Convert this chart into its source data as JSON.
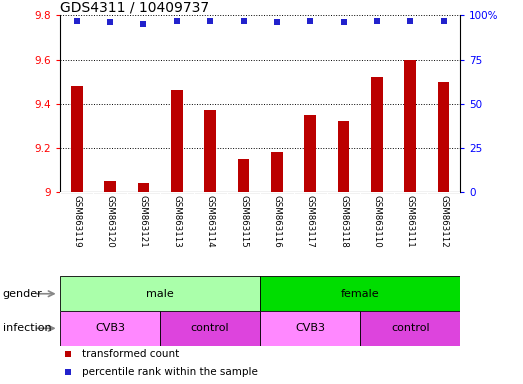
{
  "title": "GDS4311 / 10409737",
  "samples": [
    "GSM863119",
    "GSM863120",
    "GSM863121",
    "GSM863113",
    "GSM863114",
    "GSM863115",
    "GSM863116",
    "GSM863117",
    "GSM863118",
    "GSM863110",
    "GSM863111",
    "GSM863112"
  ],
  "transformed_count": [
    9.48,
    9.05,
    9.04,
    9.46,
    9.37,
    9.15,
    9.18,
    9.35,
    9.32,
    9.52,
    9.6,
    9.5
  ],
  "percentile_rank": [
    97,
    96,
    95,
    97,
    97,
    97,
    96,
    97,
    96,
    97,
    97,
    97
  ],
  "ylim_left": [
    9.0,
    9.8
  ],
  "ylim_right": [
    0,
    100
  ],
  "yticks_left": [
    9.0,
    9.2,
    9.4,
    9.6,
    9.8
  ],
  "ytick_labels_left": [
    "9",
    "9.2",
    "9.4",
    "9.6",
    "9.8"
  ],
  "yticks_right": [
    0,
    25,
    50,
    75,
    100
  ],
  "ytick_labels_right": [
    "0",
    "25",
    "50",
    "75",
    "100%"
  ],
  "bar_color": "#bb0000",
  "dot_color": "#2222cc",
  "gender_groups": [
    {
      "label": "male",
      "start": 0,
      "end": 6,
      "color": "#aaffaa"
    },
    {
      "label": "female",
      "start": 6,
      "end": 12,
      "color": "#00dd00"
    }
  ],
  "infection_groups": [
    {
      "label": "CVB3",
      "start": 0,
      "end": 3,
      "color": "#ff88ff"
    },
    {
      "label": "control",
      "start": 3,
      "end": 6,
      "color": "#dd44dd"
    },
    {
      "label": "CVB3",
      "start": 6,
      "end": 9,
      "color": "#ff88ff"
    },
    {
      "label": "control",
      "start": 9,
      "end": 12,
      "color": "#dd44dd"
    }
  ],
  "legend_items": [
    {
      "label": "transformed count",
      "color": "#bb0000"
    },
    {
      "label": "percentile rank within the sample",
      "color": "#2222cc"
    }
  ],
  "grid_color": "#000000",
  "background_color": "#ffffff",
  "title_fontsize": 10,
  "tick_fontsize": 7.5,
  "label_fontsize": 8,
  "bar_width": 0.35,
  "label_area_color": "#cccccc"
}
